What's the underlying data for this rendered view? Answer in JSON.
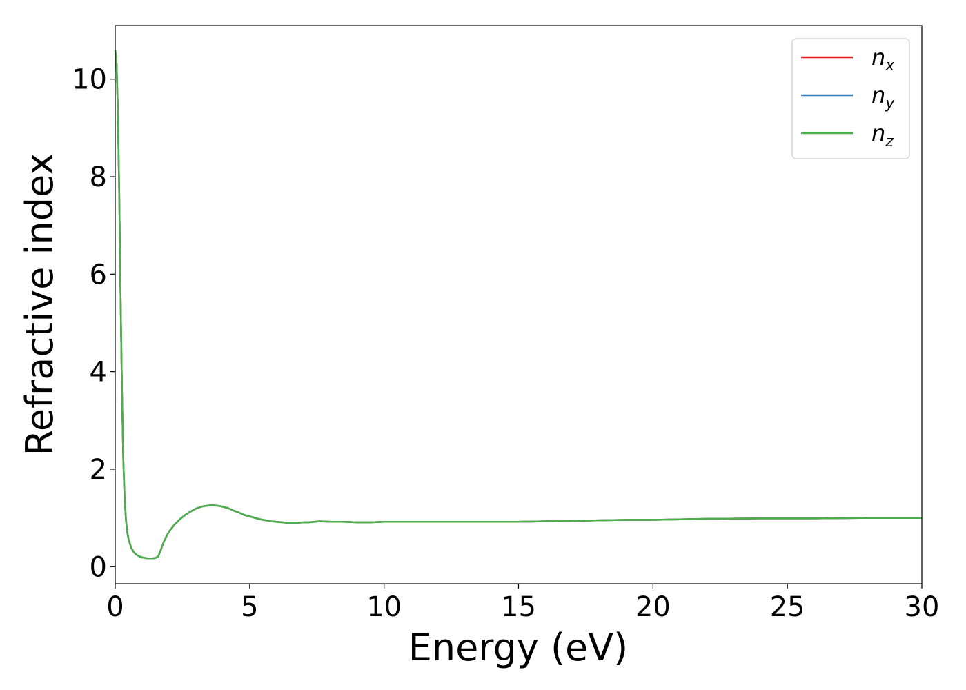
{
  "chart_data": {
    "type": "line",
    "xlabel": "Energy (eV)",
    "ylabel": "Refractive index",
    "xlim": [
      0,
      30
    ],
    "ylim": [
      -0.35,
      11.1
    ],
    "xticks": [
      0,
      5,
      10,
      15,
      20,
      25,
      30
    ],
    "xtick_labels": [
      "0",
      "5",
      "10",
      "15",
      "20",
      "25",
      "30"
    ],
    "yticks": [
      0,
      2,
      4,
      6,
      8,
      10
    ],
    "ytick_labels": [
      "0",
      "2",
      "4",
      "6",
      "8",
      "10"
    ],
    "grid": false,
    "legend_position": "top-right",
    "x": [
      0,
      0.05,
      0.1,
      0.15,
      0.2,
      0.25,
      0.3,
      0.35,
      0.4,
      0.45,
      0.5,
      0.6,
      0.7,
      0.8,
      0.9,
      1.0,
      1.1,
      1.2,
      1.3,
      1.4,
      1.5,
      1.6,
      1.7,
      1.8,
      1.9,
      2.0,
      2.2,
      2.4,
      2.6,
      2.8,
      3.0,
      3.2,
      3.4,
      3.6,
      3.8,
      4.0,
      4.2,
      4.4,
      4.6,
      4.8,
      5.0,
      5.2,
      5.4,
      5.6,
      5.8,
      6.0,
      6.2,
      6.4,
      6.6,
      6.8,
      7.0,
      7.2,
      7.4,
      7.6,
      8.0,
      8.5,
      9.0,
      9.5,
      10,
      11,
      12,
      13,
      14,
      15,
      16,
      17,
      18,
      19,
      20,
      22,
      24,
      26,
      28,
      30
    ],
    "series": [
      {
        "name": "n_x",
        "color": "#e41a1c",
        "values": [
          10.6,
          10.3,
          9.3,
          7.6,
          5.5,
          3.6,
          2.2,
          1.4,
          0.95,
          0.7,
          0.55,
          0.38,
          0.29,
          0.24,
          0.21,
          0.19,
          0.18,
          0.17,
          0.17,
          0.17,
          0.18,
          0.21,
          0.35,
          0.5,
          0.62,
          0.72,
          0.86,
          0.97,
          1.06,
          1.13,
          1.19,
          1.23,
          1.25,
          1.26,
          1.25,
          1.23,
          1.2,
          1.15,
          1.11,
          1.06,
          1.03,
          1.0,
          0.97,
          0.95,
          0.93,
          0.92,
          0.91,
          0.9,
          0.9,
          0.9,
          0.91,
          0.91,
          0.92,
          0.93,
          0.92,
          0.92,
          0.91,
          0.91,
          0.92,
          0.92,
          0.92,
          0.92,
          0.92,
          0.92,
          0.93,
          0.94,
          0.95,
          0.96,
          0.96,
          0.98,
          0.99,
          0.99,
          1.0,
          1.0
        ]
      },
      {
        "name": "n_y",
        "color": "#377eb8",
        "values": [
          10.6,
          10.3,
          9.3,
          7.6,
          5.5,
          3.6,
          2.2,
          1.4,
          0.95,
          0.7,
          0.55,
          0.38,
          0.29,
          0.24,
          0.21,
          0.19,
          0.18,
          0.17,
          0.17,
          0.17,
          0.18,
          0.21,
          0.35,
          0.5,
          0.62,
          0.72,
          0.86,
          0.97,
          1.06,
          1.13,
          1.19,
          1.23,
          1.25,
          1.26,
          1.25,
          1.23,
          1.2,
          1.15,
          1.11,
          1.06,
          1.03,
          1.0,
          0.97,
          0.95,
          0.93,
          0.92,
          0.91,
          0.9,
          0.9,
          0.9,
          0.91,
          0.91,
          0.92,
          0.93,
          0.92,
          0.92,
          0.91,
          0.91,
          0.92,
          0.92,
          0.92,
          0.92,
          0.92,
          0.92,
          0.93,
          0.94,
          0.95,
          0.96,
          0.96,
          0.98,
          0.99,
          0.99,
          1.0,
          1.0
        ]
      },
      {
        "name": "n_z",
        "color": "#4daf4a",
        "values": [
          10.6,
          10.3,
          9.3,
          7.6,
          5.5,
          3.6,
          2.2,
          1.4,
          0.95,
          0.7,
          0.55,
          0.38,
          0.29,
          0.24,
          0.21,
          0.19,
          0.18,
          0.17,
          0.17,
          0.17,
          0.18,
          0.21,
          0.35,
          0.5,
          0.62,
          0.72,
          0.86,
          0.97,
          1.06,
          1.13,
          1.19,
          1.23,
          1.25,
          1.26,
          1.25,
          1.23,
          1.2,
          1.15,
          1.11,
          1.06,
          1.03,
          1.0,
          0.97,
          0.95,
          0.93,
          0.92,
          0.91,
          0.9,
          0.9,
          0.9,
          0.91,
          0.91,
          0.92,
          0.93,
          0.92,
          0.92,
          0.91,
          0.91,
          0.92,
          0.92,
          0.92,
          0.92,
          0.92,
          0.92,
          0.93,
          0.94,
          0.95,
          0.96,
          0.96,
          0.98,
          0.99,
          0.99,
          1.0,
          1.0
        ]
      }
    ],
    "legend": [
      {
        "base": "n",
        "sub": "x",
        "color": "#e41a1c"
      },
      {
        "base": "n",
        "sub": "y",
        "color": "#377eb8"
      },
      {
        "base": "n",
        "sub": "z",
        "color": "#4daf4a"
      }
    ]
  }
}
